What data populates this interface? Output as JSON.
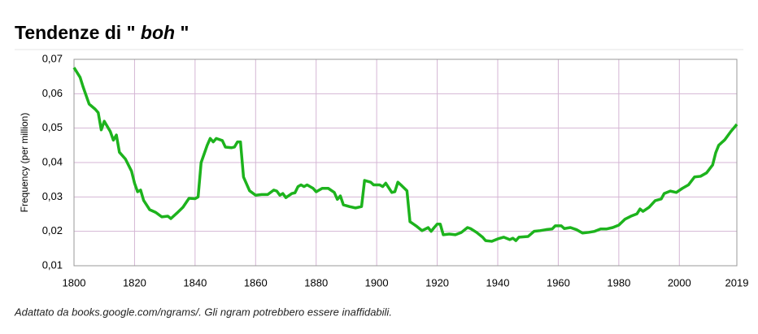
{
  "chart_data": {
    "type": "line",
    "title": {
      "prefix": "Tendenze di \"",
      "term": "boh",
      "suffix": "\""
    },
    "ylabel": "Frequency (per million)",
    "note": "Adattato da books.google.com/ngrams/. Gli ngram potrebbero essere inaffidabili.",
    "xlim": [
      1800,
      2019
    ],
    "xticks": [
      1800,
      1820,
      1840,
      1860,
      1880,
      1900,
      1920,
      1940,
      1960,
      1980,
      2000,
      2019
    ],
    "ylim": [
      0.01,
      0.07
    ],
    "yticks": [
      {
        "value": 0.01,
        "label": "0,01"
      },
      {
        "value": 0.02,
        "label": "0,02"
      },
      {
        "value": 0.03,
        "label": "0,03"
      },
      {
        "value": 0.04,
        "label": "0,04"
      },
      {
        "value": 0.05,
        "label": "0,05"
      },
      {
        "value": 0.06,
        "label": "0,06"
      },
      {
        "value": 0.07,
        "label": "0,07"
      }
    ],
    "grid": true,
    "x": [
      1800,
      1802,
      1803,
      1805,
      1807,
      1808,
      1809,
      1810,
      1812,
      1813,
      1814,
      1815,
      1817,
      1819,
      1820,
      1821,
      1822,
      1823,
      1825,
      1827,
      1829,
      1831,
      1832,
      1834,
      1836,
      1838,
      1840,
      1841,
      1842,
      1844,
      1845,
      1846,
      1847,
      1849,
      1850,
      1852,
      1853,
      1854,
      1855,
      1856,
      1858,
      1860,
      1862,
      1864,
      1866,
      1867,
      1868,
      1869,
      1870,
      1872,
      1873,
      1874,
      1875,
      1876,
      1877,
      1879,
      1880,
      1882,
      1884,
      1886,
      1887,
      1888,
      1889,
      1891,
      1893,
      1895,
      1896,
      1898,
      1899,
      1901,
      1902,
      1903,
      1905,
      1906,
      1907,
      1908,
      1910,
      1911,
      1913,
      1915,
      1917,
      1918,
      1919,
      1920,
      1921,
      1922,
      1924,
      1926,
      1928,
      1930,
      1931,
      1933,
      1935,
      1936,
      1938,
      1940,
      1942,
      1944,
      1945,
      1946,
      1947,
      1950,
      1952,
      1954,
      1956,
      1958,
      1959,
      1961,
      1962,
      1964,
      1966,
      1968,
      1970,
      1972,
      1974,
      1976,
      1978,
      1980,
      1982,
      1984,
      1986,
      1987,
      1988,
      1990,
      1992,
      1994,
      1995,
      1997,
      1999,
      2001,
      2003,
      2005,
      2007,
      2009,
      2011,
      2012,
      2013,
      2015,
      2017,
      2019
    ],
    "series": [
      {
        "name": "boh",
        "color": "#1db31d",
        "values": [
          0.0676,
          0.0648,
          0.062,
          0.057,
          0.0555,
          0.0545,
          0.0495,
          0.052,
          0.049,
          0.0465,
          0.048,
          0.043,
          0.041,
          0.0375,
          0.034,
          0.0315,
          0.032,
          0.029,
          0.0263,
          0.0255,
          0.0242,
          0.0244,
          0.0237,
          0.0253,
          0.027,
          0.0296,
          0.0295,
          0.03,
          0.04,
          0.045,
          0.047,
          0.046,
          0.047,
          0.0464,
          0.0445,
          0.0443,
          0.0445,
          0.046,
          0.046,
          0.0358,
          0.0318,
          0.0305,
          0.0307,
          0.0307,
          0.032,
          0.0317,
          0.0305,
          0.031,
          0.0298,
          0.031,
          0.0312,
          0.033,
          0.0335,
          0.033,
          0.0335,
          0.0325,
          0.0315,
          0.0325,
          0.0325,
          0.0313,
          0.0293,
          0.0303,
          0.0277,
          0.0272,
          0.0268,
          0.0272,
          0.0348,
          0.0343,
          0.0335,
          0.0335,
          0.033,
          0.034,
          0.0313,
          0.0315,
          0.0343,
          0.0335,
          0.0318,
          0.0228,
          0.0216,
          0.0202,
          0.0211,
          0.02,
          0.0211,
          0.0221,
          0.0221,
          0.019,
          0.0192,
          0.019,
          0.0197,
          0.0211,
          0.0208,
          0.0197,
          0.0183,
          0.0173,
          0.0171,
          0.0178,
          0.0183,
          0.0176,
          0.018,
          0.0173,
          0.0183,
          0.0185,
          0.02,
          0.0202,
          0.0205,
          0.0207,
          0.0216,
          0.0216,
          0.0208,
          0.0211,
          0.0205,
          0.0195,
          0.0197,
          0.02,
          0.0207,
          0.0207,
          0.0211,
          0.0218,
          0.0235,
          0.0244,
          0.0251,
          0.0265,
          0.0258,
          0.027,
          0.0289,
          0.0294,
          0.031,
          0.0317,
          0.0313,
          0.0325,
          0.0335,
          0.0358,
          0.036,
          0.037,
          0.0393,
          0.0428,
          0.045,
          0.0466,
          0.049,
          0.0511
        ]
      }
    ]
  }
}
